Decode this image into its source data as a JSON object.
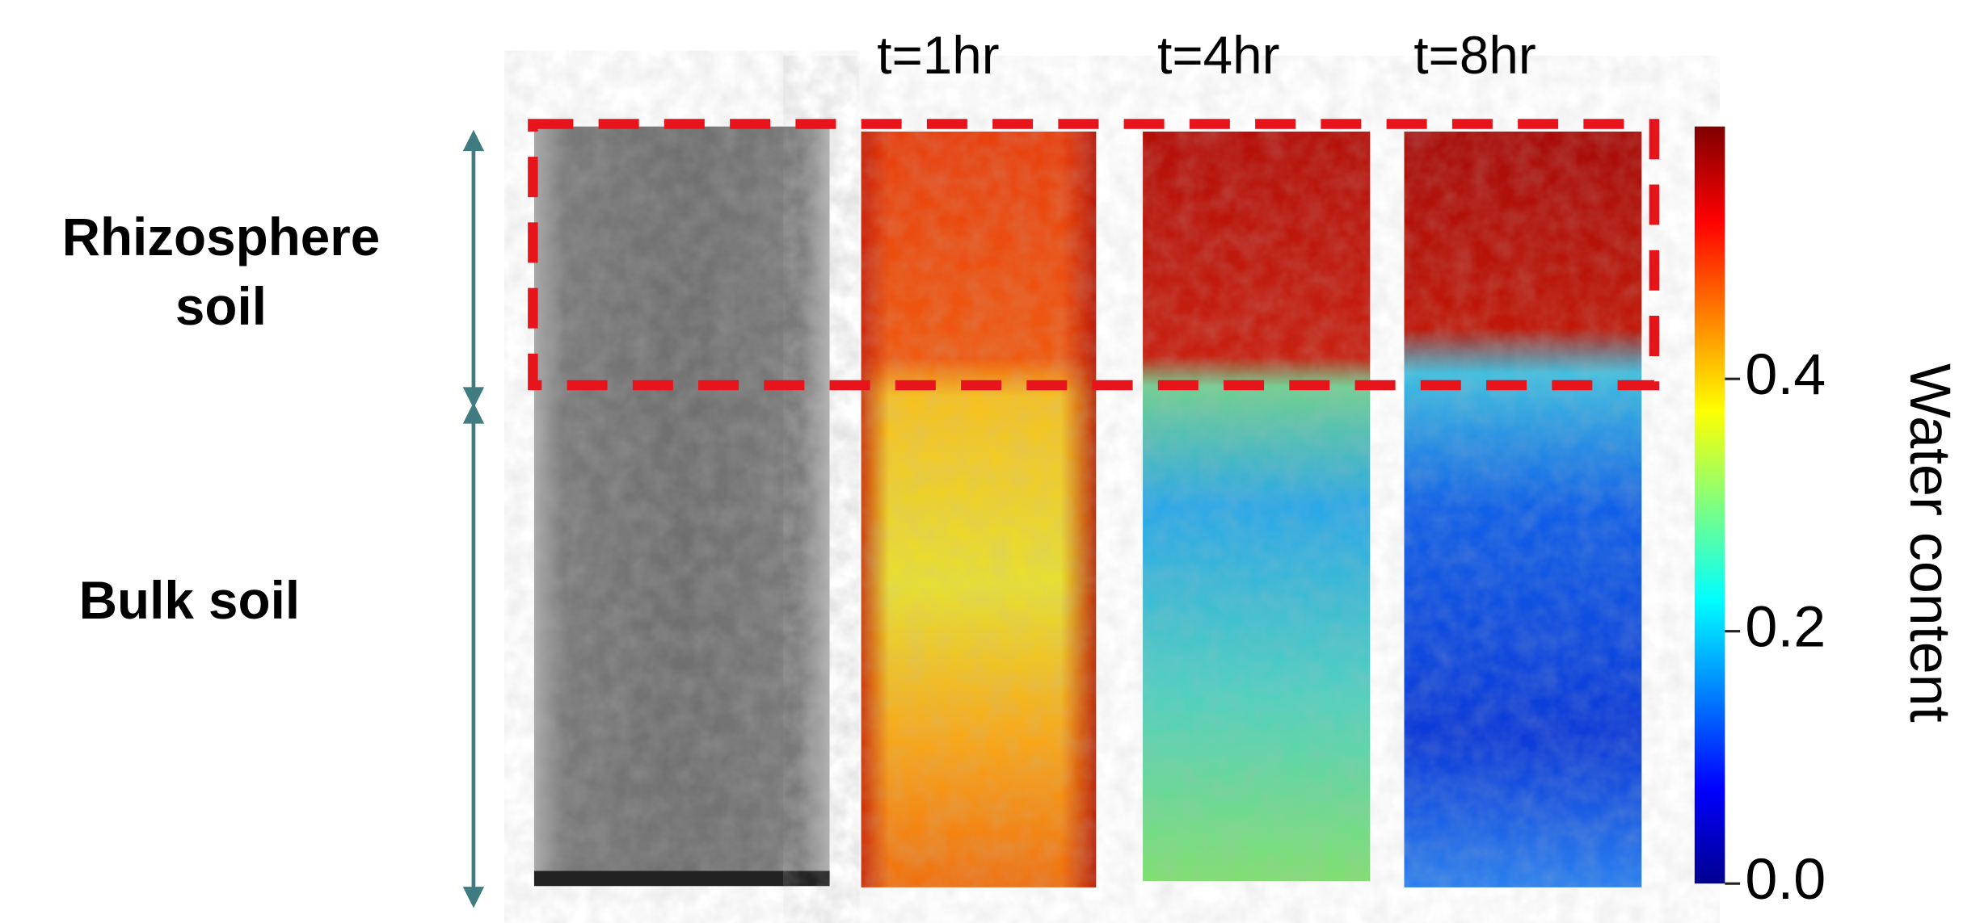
{
  "labels": {
    "rhizosphere": "Rhizosphere",
    "rhizosphere_soil": "soil",
    "bulk": "Bulk soil"
  },
  "panels": [
    {
      "label": "t=1hr"
    },
    {
      "label": "t=4hr"
    },
    {
      "label": "t=8hr"
    }
  ],
  "colorbar": {
    "title": "Water content",
    "range": [
      0,
      0.6
    ],
    "ticks": [
      {
        "value": 0,
        "label": "0.0"
      },
      {
        "value": 0.2,
        "label": "0.2"
      },
      {
        "value": 0.4,
        "label": "0.4"
      }
    ]
  }
}
